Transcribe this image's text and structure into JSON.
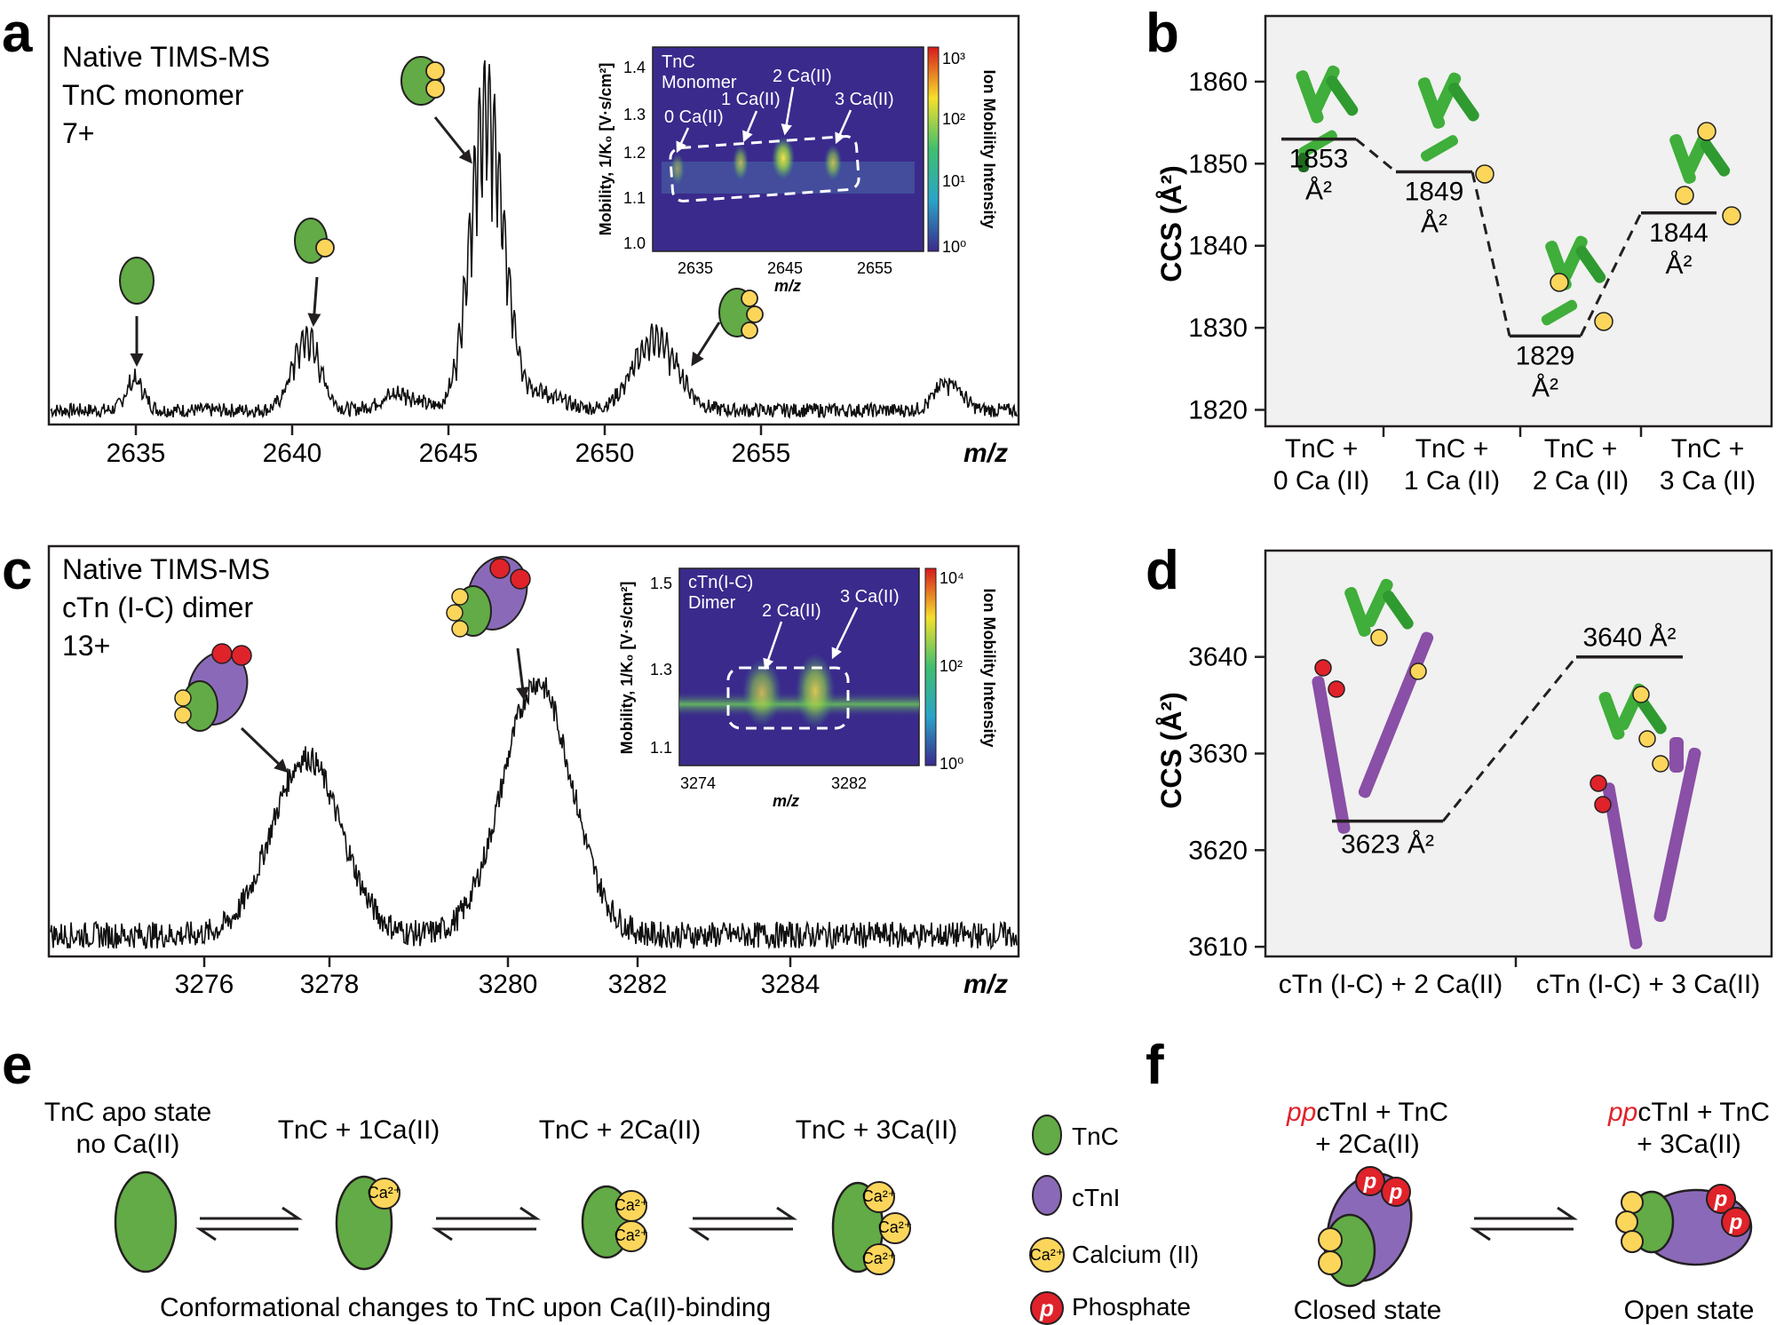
{
  "panel_labels": {
    "a": "a",
    "b": "b",
    "c": "c",
    "d": "d",
    "e": "e",
    "f": "f"
  },
  "colors": {
    "tnc_green": "#62ab46",
    "ctni_purple": "#8a6ab8",
    "calcium_yellow": "#fcd65b",
    "phosphate_red": "#e0222a",
    "heatmap_bg": "#3a2a8c",
    "panel_bg": "#f0f1f0"
  },
  "panel_a": {
    "label_line1": "Native TIMS-MS",
    "label_line2": "TnC monomer",
    "label_line3": "7+",
    "xlabel": "m/z",
    "xticks": [
      "2635",
      "2640",
      "2645",
      "2650",
      "2655"
    ],
    "inset": {
      "tag_line1": "TnC",
      "tag_line2": "Monomer",
      "ylabel": "Mobility, 1/K₀ [V·s/cm²]",
      "yticks": [
        "1.4",
        "1.3",
        "1.2",
        "1.1",
        "1.0"
      ],
      "xticks": [
        "2635",
        "2645",
        "2655"
      ],
      "xlabel": "m/z",
      "annotations": [
        "0 Ca(II)",
        "1 Ca(II)",
        "2 Ca(II)",
        "3 Ca(II)"
      ],
      "colorbar_label": "Ion Mobility Intensity",
      "colorbar_ticks": [
        "10³",
        "10²",
        "10¹",
        "10⁰"
      ]
    }
  },
  "panel_b": {
    "ylabel": "CCS (Å²)",
    "unit": "Å²",
    "chart_data": {
      "type": "line",
      "title": "",
      "xlabel": "",
      "ylabel": "CCS (Å²)",
      "categories": [
        "TnC + 0 Ca (II)",
        "TnC + 1 Ca (II)",
        "TnC + 2 Ca (II)",
        "TnC + 3 Ca (II)"
      ],
      "category_line1": [
        "TnC +",
        "TnC +",
        "TnC +",
        "TnC +"
      ],
      "category_line2": [
        "0 Ca (II)",
        "1 Ca (II)",
        "2 Ca (II)",
        "3 Ca (II)"
      ],
      "values": [
        1853,
        1849,
        1829,
        1844
      ],
      "value_labels": [
        "1853",
        "1849",
        "1829",
        "1844"
      ],
      "yticks": [
        "1860",
        "1850",
        "1840",
        "1830",
        "1820"
      ],
      "ylim": [
        1818,
        1868
      ]
    }
  },
  "panel_c": {
    "label_line1": "Native TIMS-MS",
    "label_line2": "cTn (I-C) dimer",
    "label_line3": "13+",
    "xlabel": "m/z",
    "xticks": [
      "3276",
      "3278",
      "3280",
      "3282",
      "3284"
    ],
    "inset": {
      "tag_line1": "cTn(I-C)",
      "tag_line2": "Dimer",
      "ylabel": "Mobility, 1/K₀ [V·s/cm²]",
      "yticks": [
        "1.5",
        "1.3",
        "1.1"
      ],
      "xticks": [
        "3274",
        "3282"
      ],
      "xlabel": "m/z",
      "annotations": [
        "2 Ca(II)",
        "3 Ca(II)"
      ],
      "colorbar_label": "Ion Mobility Intensity",
      "colorbar_ticks": [
        "10⁴",
        "10²",
        "10⁰"
      ]
    }
  },
  "panel_d": {
    "ylabel": "CCS (Å²)",
    "chart_data": {
      "type": "line",
      "title": "",
      "xlabel": "",
      "ylabel": "CCS (Å²)",
      "categories": [
        "cTn (I-C) + 2 Ca(II)",
        "cTn (I-C) + 3 Ca(II)"
      ],
      "values": [
        3623,
        3640
      ],
      "value_labels": [
        "3623 Å²",
        "3640 Å²"
      ],
      "yticks": [
        "3640",
        "3630",
        "3620",
        "3610"
      ],
      "ylim": [
        3609,
        3651
      ]
    }
  },
  "panel_e": {
    "states": [
      {
        "line1": "TnC apo state",
        "line2": "no Ca(II)"
      },
      {
        "line1": "TnC + 1Ca(II)",
        "line2": ""
      },
      {
        "line1": "TnC + 2Ca(II)",
        "line2": ""
      },
      {
        "line1": "TnC + 3Ca(II)",
        "line2": ""
      }
    ],
    "caption": "Conformational changes to TnC upon Ca(II)-binding",
    "ca_symbol": "Ca²⁺"
  },
  "legend": {
    "items": [
      "TnC",
      "cTnI",
      "Calcium (II)",
      "Phosphate"
    ],
    "phosphate_symbol": "p"
  },
  "panel_f": {
    "left_prefix": "pp",
    "left_line1_rest": "cTnI + TnC",
    "left_line2": "+ 2Ca(II)",
    "right_prefix": "pp",
    "right_line1_rest": "cTnI + TnC",
    "right_line2": "+ 3Ca(II)",
    "left_caption": "Closed state",
    "right_caption": "Open state"
  }
}
